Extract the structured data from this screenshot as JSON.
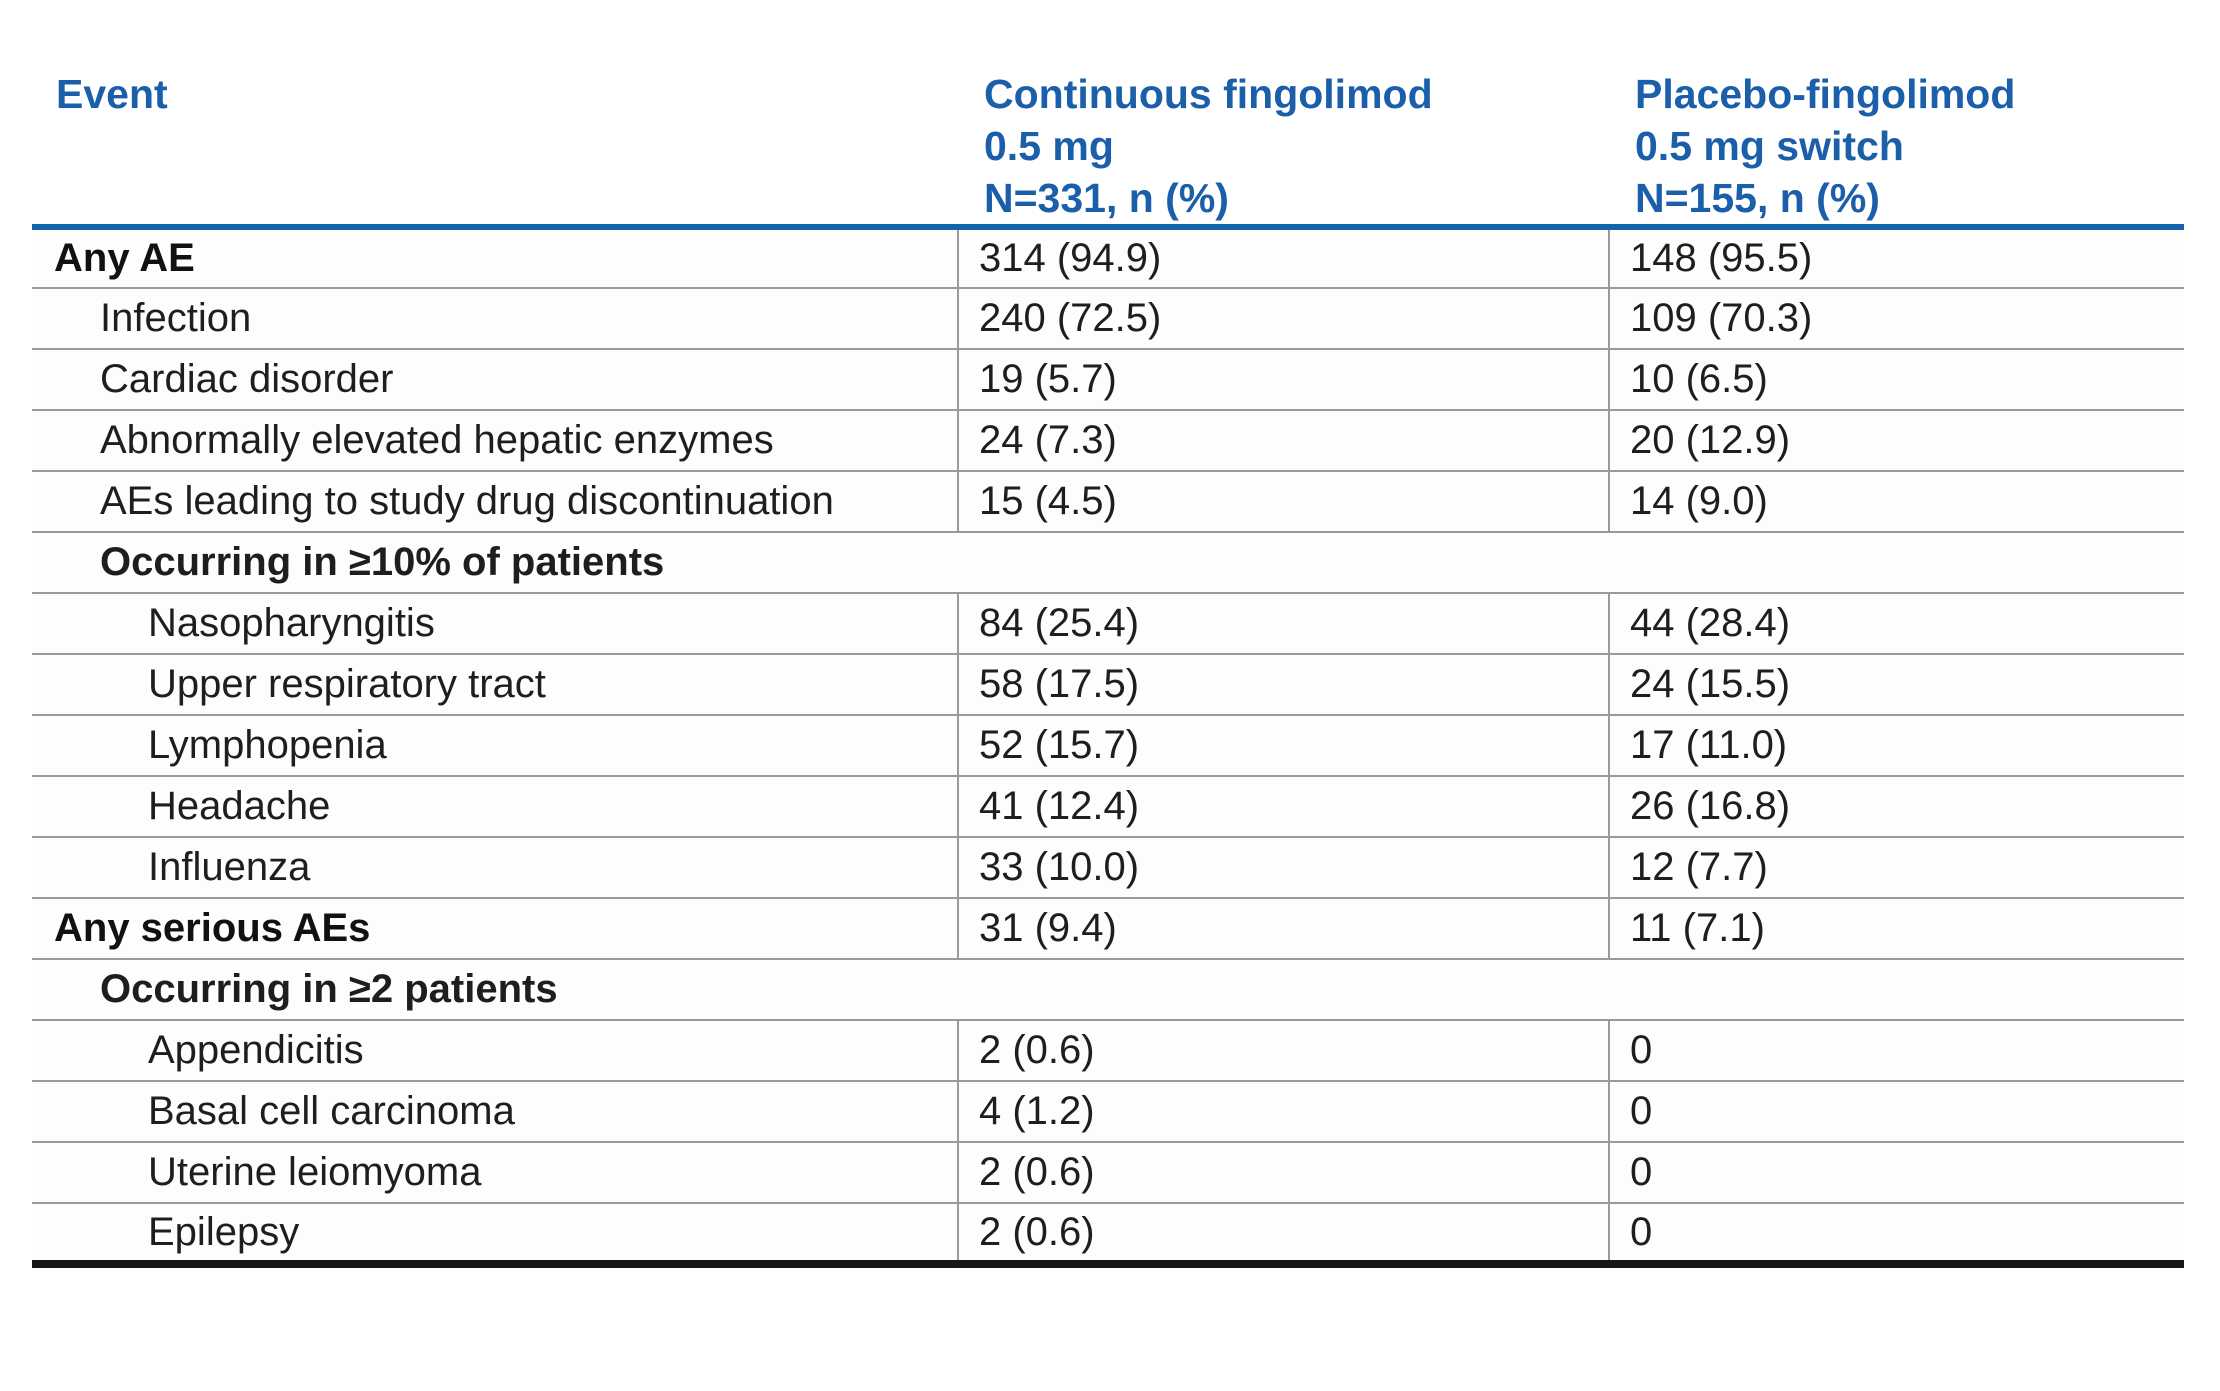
{
  "header": {
    "event": "Event",
    "col_continuous": [
      "Continuous fingolimod",
      "0.5 mg",
      "N=331, n (%)"
    ],
    "col_placebo": [
      "Placebo-fingolimod",
      "0.5 mg switch",
      "N=155, n (%)"
    ]
  },
  "rows": [
    {
      "event": "Any AE",
      "continuous": "314 (94.9)",
      "placebo": "148 (95.5)",
      "style": "bold"
    },
    {
      "event": "Infection",
      "continuous": "240 (72.5)",
      "placebo": "109 (70.3)",
      "style": "indent1"
    },
    {
      "event": "Cardiac disorder",
      "continuous": "19 (5.7)",
      "placebo": "10 (6.5)",
      "style": "indent1"
    },
    {
      "event": "Abnormally elevated hepatic enzymes",
      "continuous": "24 (7.3)",
      "placebo": "20 (12.9)",
      "style": "indent1"
    },
    {
      "event": "AEs leading to study drug discontinuation",
      "continuous": "15 (4.5)",
      "placebo": "14 (9.0)",
      "style": "indent1"
    },
    {
      "event": "Occurring in ≥10% of patients",
      "continuous": "",
      "placebo": "",
      "style": "section"
    },
    {
      "event": "Nasopharyngitis",
      "continuous": "84 (25.4)",
      "placebo": "44 (28.4)",
      "style": "indent2"
    },
    {
      "event": "Upper respiratory tract",
      "continuous": "58 (17.5)",
      "placebo": "24 (15.5)",
      "style": "indent2"
    },
    {
      "event": "Lymphopenia",
      "continuous": "52 (15.7)",
      "placebo": "17 (11.0)",
      "style": "indent2"
    },
    {
      "event": "Headache",
      "continuous": "41 (12.4)",
      "placebo": "26 (16.8)",
      "style": "indent2"
    },
    {
      "event": "Influenza",
      "continuous": "33 (10.0)",
      "placebo": "12 (7.7)",
      "style": "indent2"
    },
    {
      "event": "Any serious AEs",
      "continuous": "31 (9.4)",
      "placebo": "11 (7.1)",
      "style": "bold"
    },
    {
      "event": "Occurring in ≥2 patients",
      "continuous": "",
      "placebo": "",
      "style": "section"
    },
    {
      "event": "Appendicitis",
      "continuous": "2 (0.6)",
      "placebo": "0",
      "style": "indent2"
    },
    {
      "event": "Basal cell carcinoma",
      "continuous": "4 (1.2)",
      "placebo": "0",
      "style": "indent2"
    },
    {
      "event": "Uterine leiomyoma",
      "continuous": "2 (0.6)",
      "placebo": "0",
      "style": "indent2"
    },
    {
      "event": "Epilepsy",
      "continuous": "2 (0.6)",
      "placebo": "0",
      "style": "indent2"
    }
  ],
  "colors": {
    "accent_blue": "#1b5ea9",
    "rule_blue": "#1565ae",
    "rule_gray": "#9a9a9a",
    "rule_black": "#161616",
    "text_dark": "#1e1e1e"
  },
  "chart_data": {
    "type": "table",
    "title": "",
    "columns": [
      "Event",
      "Continuous fingolimod 0.5 mg N=331, n (%)",
      "Placebo-fingolimod 0.5 mg switch N=155, n (%)"
    ],
    "rows": [
      [
        "Any AE",
        "314 (94.9)",
        "148 (95.5)"
      ],
      [
        "Infection",
        "240 (72.5)",
        "109 (70.3)"
      ],
      [
        "Cardiac disorder",
        "19 (5.7)",
        "10 (6.5)"
      ],
      [
        "Abnormally elevated hepatic enzymes",
        "24 (7.3)",
        "20 (12.9)"
      ],
      [
        "AEs leading to study drug discontinuation",
        "15 (4.5)",
        "14 (9.0)"
      ],
      [
        "Occurring in ≥10% of patients",
        "",
        ""
      ],
      [
        "Nasopharyngitis",
        "84 (25.4)",
        "44 (28.4)"
      ],
      [
        "Upper respiratory tract",
        "58 (17.5)",
        "24 (15.5)"
      ],
      [
        "Lymphopenia",
        "52 (15.7)",
        "17 (11.0)"
      ],
      [
        "Headache",
        "41 (12.4)",
        "26 (16.8)"
      ],
      [
        "Influenza",
        "33 (10.0)",
        "12 (7.7)"
      ],
      [
        "Any serious AEs",
        "31 (9.4)",
        "11 (7.1)"
      ],
      [
        "Occurring in ≥2 patients",
        "",
        ""
      ],
      [
        "Appendicitis",
        "2 (0.6)",
        "0"
      ],
      [
        "Basal cell carcinoma",
        "4 (1.2)",
        "0"
      ],
      [
        "Uterine leiomyoma",
        "2 (0.6)",
        "0"
      ],
      [
        "Epilepsy",
        "2 (0.6)",
        "0"
      ]
    ]
  }
}
